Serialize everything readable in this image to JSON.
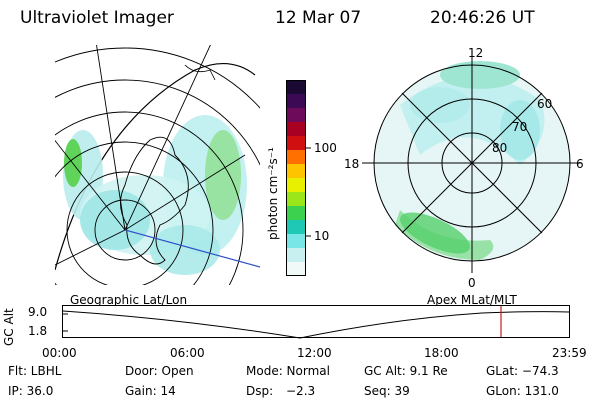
{
  "header": {
    "title": "Ultraviolet Imager",
    "date": "12 Mar 07",
    "time": "20:46:26 UT"
  },
  "colorbar": {
    "unit_label": "photon cm⁻²s⁻¹",
    "ticks": [
      "100",
      "10"
    ],
    "colors": [
      "#1a0a33",
      "#3c0a55",
      "#6e0a5a",
      "#a80022",
      "#d01010",
      "#ff7000",
      "#ffc400",
      "#e8f000",
      "#9ae61a",
      "#3cd250",
      "#1ec8b4",
      "#78e6e6",
      "#c8f0f0",
      "#f0f8f8"
    ]
  },
  "polar_plot": {
    "lat_labels": [
      "60",
      "70",
      "80"
    ],
    "mlt_labels": {
      "top": "12",
      "left": "18",
      "right": "6",
      "bottom": "0"
    }
  },
  "timeline": {
    "left_label": "Geographic Lat/Lon",
    "right_label": "Apex MLat/MLT",
    "y_axis_label": "GC Alt",
    "y_ticks": [
      "9.0",
      "1.8"
    ],
    "time_ticks": [
      "00:00",
      "06:00",
      "12:00",
      "18:00",
      "23:59"
    ],
    "curve_color": "#000000",
    "marker_color": "#c81e1e"
  },
  "info": {
    "flt": "Flt: LBHL",
    "door": "Door: Open",
    "mode": "Mode: Normal",
    "gc_alt": "GC Alt: 9.1 Re",
    "glat": "GLat: −74.3",
    "ip": "IP: 36.0",
    "gain": "Gain: 14",
    "dsp_label": "Dsp:",
    "dsp_value": "−2.3",
    "seq": "Seq: 39",
    "glon": "GLon: 131.0"
  }
}
